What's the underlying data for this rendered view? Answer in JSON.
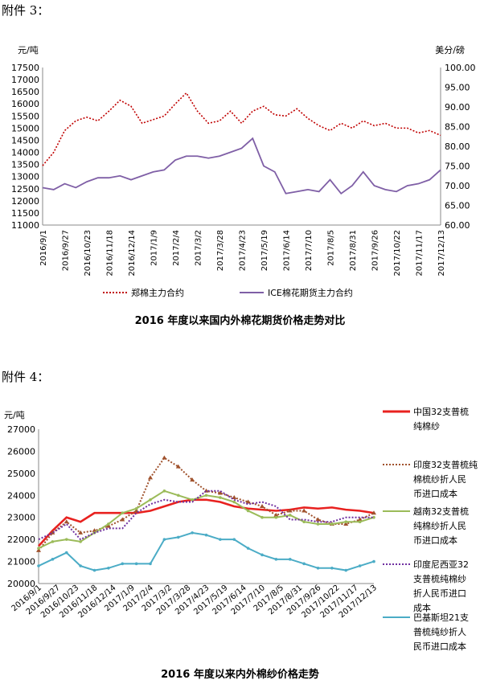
{
  "attachment3": {
    "heading": "附件 3："
  },
  "attachment4": {
    "heading": "附件 4："
  },
  "chart_data": [
    {
      "type": "line",
      "title": "2016 年度以来国内外棉花期货价格走势对比",
      "ylabel": "元/吨",
      "y2label": "美分/磅",
      "ylim": [
        11000,
        17500
      ],
      "y2lim": [
        60,
        100
      ],
      "y_ticks": [
        11000,
        11500,
        12000,
        12500,
        13000,
        13500,
        14000,
        14500,
        15000,
        15500,
        16000,
        16500,
        17000,
        17500
      ],
      "y2_ticks": [
        "60.00",
        "65.00",
        "70.00",
        "75.00",
        "80.00",
        "85.00",
        "90.00",
        "95.00",
        "100.00"
      ],
      "x_ticks": [
        "2016/9/1",
        "2016/9/27",
        "2016/10/23",
        "2016/11/18",
        "2016/12/14",
        "2017/1/9",
        "2017/2/4",
        "2017/3/2",
        "2017/3/28",
        "2017/4/23",
        "2017/5/19",
        "2017/6/14",
        "2017/7/10",
        "2017/8/5",
        "2017/8/31",
        "2017/9/26",
        "2017/10/22",
        "2017/11/17",
        "2017/12/13"
      ],
      "grid": false,
      "legend_position": "bottom",
      "series": [
        {
          "name": "郑棉主力合约",
          "axis": "left",
          "color": "#c00000",
          "style": "dotted",
          "points": [
            [
              0,
              13450
            ],
            [
              1,
              14000
            ],
            [
              2,
              14900
            ],
            [
              3,
              15300
            ],
            [
              4,
              15450
            ],
            [
              5,
              15300
            ],
            [
              6,
              15700
            ],
            [
              7,
              16150
            ],
            [
              8,
              15900
            ],
            [
              9,
              15200
            ],
            [
              10,
              15350
            ],
            [
              11,
              15500
            ],
            [
              12,
              16000
            ],
            [
              13,
              16450
            ],
            [
              14,
              15700
            ],
            [
              15,
              15200
            ],
            [
              16,
              15300
            ],
            [
              17,
              15700
            ],
            [
              18,
              15200
            ],
            [
              19,
              15700
            ],
            [
              20,
              15900
            ],
            [
              21,
              15550
            ],
            [
              22,
              15500
            ],
            [
              23,
              15800
            ],
            [
              24,
              15400
            ],
            [
              25,
              15100
            ],
            [
              26,
              14900
            ],
            [
              27,
              15200
            ],
            [
              28,
              15000
            ],
            [
              29,
              15300
            ],
            [
              30,
              15100
            ],
            [
              31,
              15200
            ],
            [
              32,
              15000
            ],
            [
              33,
              15000
            ],
            [
              34,
              14800
            ],
            [
              35,
              14900
            ],
            [
              36,
              14700
            ]
          ]
        },
        {
          "name": "ICE棉花期货主力合约",
          "axis": "right",
          "color": "#7f5fa6",
          "style": "solid",
          "points": [
            [
              0,
              69.5
            ],
            [
              1,
              69.0
            ],
            [
              2,
              70.5
            ],
            [
              3,
              69.5
            ],
            [
              4,
              71.0
            ],
            [
              5,
              72.0
            ],
            [
              6,
              72.0
            ],
            [
              7,
              72.5
            ],
            [
              8,
              71.5
            ],
            [
              9,
              72.5
            ],
            [
              10,
              73.5
            ],
            [
              11,
              74.0
            ],
            [
              12,
              76.5
            ],
            [
              13,
              77.5
            ],
            [
              14,
              77.5
            ],
            [
              15,
              77.0
            ],
            [
              16,
              77.5
            ],
            [
              17,
              78.5
            ],
            [
              18,
              79.5
            ],
            [
              19,
              82.0
            ],
            [
              20,
              75.0
            ],
            [
              21,
              73.5
            ],
            [
              22,
              68.0
            ],
            [
              23,
              68.5
            ],
            [
              24,
              69.0
            ],
            [
              25,
              68.5
            ],
            [
              26,
              71.5
            ],
            [
              27,
              68.0
            ],
            [
              28,
              70.0
            ],
            [
              29,
              73.5
            ],
            [
              30,
              70.0
            ],
            [
              31,
              69.0
            ],
            [
              32,
              68.5
            ],
            [
              33,
              70.0
            ],
            [
              34,
              70.5
            ],
            [
              35,
              71.5
            ],
            [
              36,
              74.0
            ]
          ]
        }
      ]
    },
    {
      "type": "line",
      "title": "2016 年度以来内外棉纱价格走势",
      "ylabel": "元/吨",
      "ylim": [
        20000,
        27000
      ],
      "y_ticks": [
        20000,
        21000,
        22000,
        23000,
        24000,
        25000,
        26000,
        27000
      ],
      "x_ticks": [
        "2016/9/1",
        "2016/9/27",
        "2016/10/23",
        "2016/11/18",
        "2016/12/14",
        "2017/1/9",
        "2017/2/4",
        "2017/3/2",
        "2017/3/28",
        "2017/4/23",
        "2017/5/19",
        "2017/6/14",
        "2017/7/10",
        "2017/8/5",
        "2017/8/31",
        "2017/9/26",
        "2017/10/22",
        "2017/11/17",
        "2017/12/13"
      ],
      "grid": false,
      "legend_position": "right",
      "series": [
        {
          "name": "中国32支普梳纯棉纱",
          "color": "#e8211f",
          "style": "thick",
          "points": [
            [
              0,
              21700
            ],
            [
              1,
              22400
            ],
            [
              2,
              23000
            ],
            [
              3,
              22800
            ],
            [
              4,
              23200
            ],
            [
              5,
              23200
            ],
            [
              6,
              23200
            ],
            [
              7,
              23200
            ],
            [
              8,
              23300
            ],
            [
              9,
              23500
            ],
            [
              10,
              23700
            ],
            [
              11,
              23800
            ],
            [
              12,
              23800
            ],
            [
              13,
              23700
            ],
            [
              14,
              23500
            ],
            [
              15,
              23400
            ],
            [
              16,
              23350
            ],
            [
              17,
              23300
            ],
            [
              18,
              23350
            ],
            [
              19,
              23450
            ],
            [
              20,
              23400
            ],
            [
              21,
              23450
            ],
            [
              22,
              23350
            ],
            [
              23,
              23300
            ],
            [
              24,
              23200
            ]
          ]
        },
        {
          "name": "印度32支普梳纯棉梳纱折人民币进口成本",
          "color": "#a0522d",
          "style": "triangle",
          "points": [
            [
              0,
              21500
            ],
            [
              1,
              22300
            ],
            [
              2,
              22800
            ],
            [
              3,
              22300
            ],
            [
              4,
              22400
            ],
            [
              5,
              22600
            ],
            [
              6,
              22900
            ],
            [
              7,
              23300
            ],
            [
              8,
              24800
            ],
            [
              9,
              25700
            ],
            [
              10,
              25300
            ],
            [
              11,
              24700
            ],
            [
              12,
              24200
            ],
            [
              13,
              24100
            ],
            [
              14,
              23900
            ],
            [
              15,
              23700
            ],
            [
              16,
              23500
            ],
            [
              17,
              23100
            ],
            [
              18,
              23300
            ],
            [
              19,
              23300
            ],
            [
              20,
              22900
            ],
            [
              21,
              22700
            ],
            [
              22,
              22700
            ],
            [
              23,
              22900
            ],
            [
              24,
              23200
            ]
          ]
        },
        {
          "name": "越南32支普梳纯棉纱折人民币进口成本",
          "color": "#9bbb59",
          "style": "dot-markers",
          "points": [
            [
              0,
              21600
            ],
            [
              1,
              21900
            ],
            [
              2,
              22000
            ],
            [
              3,
              21900
            ],
            [
              4,
              22300
            ],
            [
              5,
              22700
            ],
            [
              6,
              23200
            ],
            [
              7,
              23400
            ],
            [
              8,
              23800
            ],
            [
              9,
              24200
            ],
            [
              10,
              24000
            ],
            [
              11,
              23800
            ],
            [
              12,
              24000
            ],
            [
              13,
              23900
            ],
            [
              14,
              23700
            ],
            [
              15,
              23300
            ],
            [
              16,
              23000
            ],
            [
              17,
              23000
            ],
            [
              18,
              23100
            ],
            [
              19,
              22800
            ],
            [
              20,
              22700
            ],
            [
              21,
              22700
            ],
            [
              22,
              22800
            ],
            [
              23,
              22800
            ],
            [
              24,
              23000
            ]
          ]
        },
        {
          "name": "印度尼西亚32支普梳纯棉纱折人民币进口成本",
          "color": "#7030a0",
          "style": "dotted",
          "points": [
            [
              0,
              22000
            ],
            [
              1,
              22300
            ],
            [
              2,
              22700
            ],
            [
              3,
              22000
            ],
            [
              4,
              22300
            ],
            [
              5,
              22500
            ],
            [
              6,
              22500
            ],
            [
              7,
              23200
            ],
            [
              8,
              23600
            ],
            [
              9,
              23800
            ],
            [
              10,
              23700
            ],
            [
              11,
              23700
            ],
            [
              12,
              24200
            ],
            [
              13,
              24200
            ],
            [
              14,
              23800
            ],
            [
              15,
              23600
            ],
            [
              16,
              23700
            ],
            [
              17,
              23500
            ],
            [
              18,
              22900
            ],
            [
              19,
              22900
            ],
            [
              20,
              22800
            ],
            [
              21,
              22800
            ],
            [
              22,
              23000
            ],
            [
              23,
              23000
            ],
            [
              24,
              23000
            ]
          ]
        },
        {
          "name": "巴基斯坦21支普梳纯纱折人民币进口成本",
          "color": "#4bacc6",
          "style": "markers",
          "points": [
            [
              0,
              20800
            ],
            [
              1,
              21100
            ],
            [
              2,
              21400
            ],
            [
              3,
              20800
            ],
            [
              4,
              20600
            ],
            [
              5,
              20700
            ],
            [
              6,
              20900
            ],
            [
              7,
              20900
            ],
            [
              8,
              20900
            ],
            [
              9,
              22000
            ],
            [
              10,
              22100
            ],
            [
              11,
              22300
            ],
            [
              12,
              22200
            ],
            [
              13,
              22000
            ],
            [
              14,
              22000
            ],
            [
              15,
              21600
            ],
            [
              16,
              21300
            ],
            [
              17,
              21100
            ],
            [
              18,
              21100
            ],
            [
              19,
              20900
            ],
            [
              20,
              20700
            ],
            [
              21,
              20700
            ],
            [
              22,
              20600
            ],
            [
              23,
              20800
            ],
            [
              24,
              21000
            ]
          ]
        }
      ]
    }
  ]
}
